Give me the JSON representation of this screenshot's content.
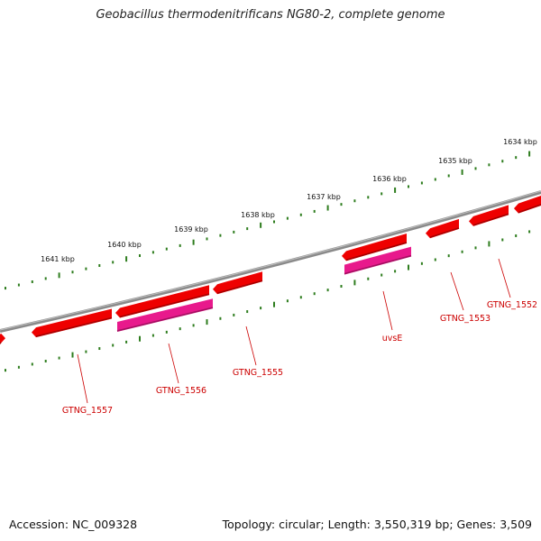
{
  "title": "Geobacillus thermodenitrificans NG80-2, complete genome",
  "accession": "Accession: NC_009328",
  "summary": "Topology: circular; Length: 3,550,319 bp; Genes: 3,509",
  "colors": {
    "backbone": "#8a8a8a",
    "tick": "#2e7d1e",
    "gene_red": "#ee0000",
    "gene_red_dark": "#a30000",
    "gene_magenta": "#e8198c",
    "label": "#cc0000"
  },
  "ruler_labels": [
    "1641 kbp",
    "1640 kbp",
    "1639 kbp",
    "1638 kbp",
    "1637 kbp",
    "1636 kbp",
    "1635 kbp",
    "1634 kbp"
  ],
  "gene_labels": [
    "GTNG_1557",
    "GTNG_1556",
    "GTNG_1555",
    "uvsE",
    "GTNG_1553",
    "GTNG_1552"
  ]
}
